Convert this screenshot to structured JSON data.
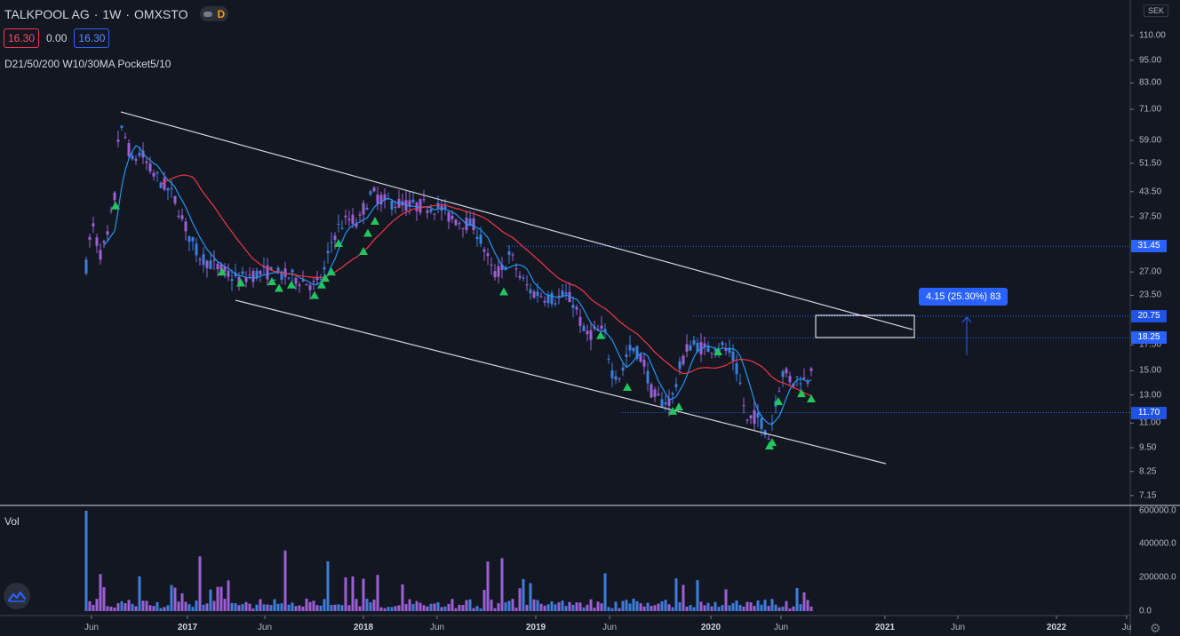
{
  "header": {
    "symbol": "TALKPOOL AG",
    "interval": "1W",
    "exchange": "OMXSTO",
    "dot": "·",
    "delay_badge": "D"
  },
  "prices": {
    "bid": "16.30",
    "change": "0.00",
    "ask": "16.30"
  },
  "indicator": "D21/50/200 W10/30MA Pocket5/10",
  "volume_label": "Vol",
  "currency": "SEK",
  "price_axis": [
    {
      "label": "110.00",
      "value": 110
    },
    {
      "label": "95.00",
      "value": 95
    },
    {
      "label": "83.00",
      "value": 83
    },
    {
      "label": "71.00",
      "value": 71
    },
    {
      "label": "59.00",
      "value": 59
    },
    {
      "label": "51.50",
      "value": 51.5
    },
    {
      "label": "43.50",
      "value": 43.5
    },
    {
      "label": "37.50",
      "value": 37.5
    },
    {
      "label": "27.00",
      "value": 27
    },
    {
      "label": "23.50",
      "value": 23.5
    },
    {
      "label": "17.50",
      "value": 17.5
    },
    {
      "label": "15.00",
      "value": 15
    },
    {
      "label": "13.00",
      "value": 13
    },
    {
      "label": "11.00",
      "value": 11
    },
    {
      "label": "9.50",
      "value": 9.5
    },
    {
      "label": "8.25",
      "value": 8.25
    },
    {
      "label": "7.15",
      "value": 7.15
    }
  ],
  "price_labels": [
    {
      "label": "31.45",
      "value": 31.45
    },
    {
      "label": "20.75",
      "value": 20.75
    },
    {
      "label": "18.25",
      "value": 18.25
    },
    {
      "label": "11.70",
      "value": 11.7
    }
  ],
  "volume_axis": [
    "600000.0",
    "400000.0",
    "200000.0",
    "0.0"
  ],
  "time_axis": [
    {
      "label": "Jun",
      "year": false
    },
    {
      "label": "2017",
      "year": true
    },
    {
      "label": "Jun",
      "year": false
    },
    {
      "label": "2018",
      "year": true
    },
    {
      "label": "Jun",
      "year": false
    },
    {
      "label": "2019",
      "year": true
    },
    {
      "label": "Jun",
      "year": false
    },
    {
      "label": "2020",
      "year": true
    },
    {
      "label": "Jun",
      "year": false
    },
    {
      "label": "2021",
      "year": true
    },
    {
      "label": "Jun",
      "year": false
    },
    {
      "label": "2022",
      "year": true
    },
    {
      "label": "Ju",
      "year": false
    }
  ],
  "measure_label": "4.15 (25.30%) 83",
  "colors": {
    "background": "#131722",
    "candle": "#9c5fd6",
    "candle_up": "#3d7edb",
    "ma_fast": "#2196f3",
    "ma_slow": "#f23645",
    "signal": "#22c55e",
    "trendline": "#d1d4dc",
    "price_label": "#2962ff"
  },
  "icons": {
    "logo": "tradingview-logo-icon",
    "settings": "gear-icon"
  }
}
